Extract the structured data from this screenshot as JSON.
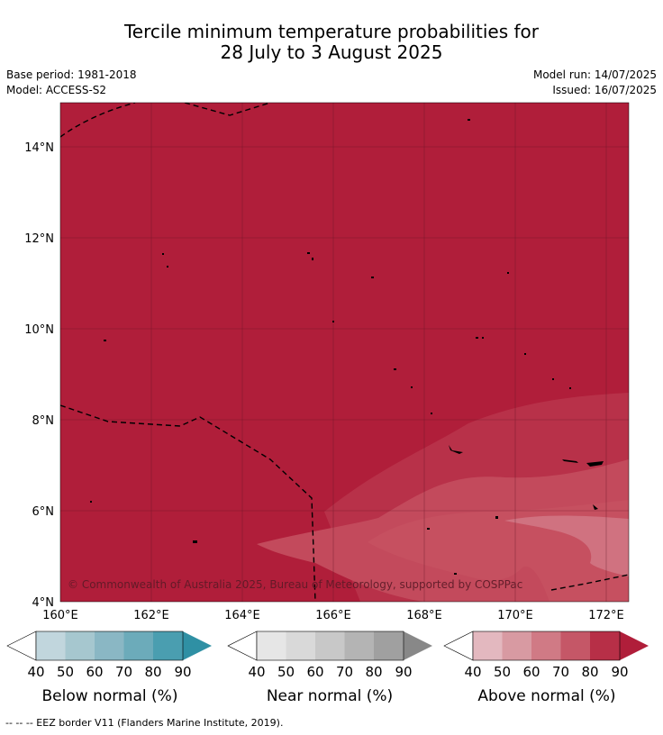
{
  "title": {
    "line1": "Tercile minimum temperature probabilities for",
    "line2": "28 July to 3 August 2025"
  },
  "meta": {
    "base_period": "Base period: 1981-2018",
    "model": "Model: ACCESS-S2",
    "model_run": "Model run: 14/07/2025",
    "issued": "Issued: 16/07/2025"
  },
  "map": {
    "lat_labels": [
      "14°N",
      "12°N",
      "10°N",
      "8°N",
      "6°N",
      "4°N"
    ],
    "lon_labels": [
      "160°E",
      "162°E",
      "164°E",
      "166°E",
      "168°E",
      "170°E",
      "172°E"
    ],
    "copyright": "© Commonwealth of Australia 2025, Bureau of Meteorology, supported by COSPPac",
    "lat_range": [
      4,
      15
    ],
    "lon_range": [
      160,
      172.5
    ]
  },
  "legends": [
    {
      "title": "Below normal (%)",
      "ticks": [
        "40",
        "50",
        "60",
        "70",
        "80",
        "90"
      ],
      "colors": [
        "#c1d6dd",
        "#a6c7cf",
        "#8ab7c4",
        "#6cabba",
        "#4a9eb0",
        "#2f90a4"
      ]
    },
    {
      "title": "Near normal (%)",
      "ticks": [
        "40",
        "50",
        "60",
        "70",
        "80",
        "90"
      ],
      "colors": [
        "#e6e6e6",
        "#d9d9d9",
        "#c8c8c8",
        "#b4b4b4",
        "#a0a0a0",
        "#888888"
      ]
    },
    {
      "title": "Above normal (%)",
      "ticks": [
        "40",
        "50",
        "60",
        "70",
        "80",
        "90"
      ],
      "colors": [
        "#e3b8bf",
        "#d89aa2",
        "#d07a85",
        "#c55767",
        "#b72f47",
        "#b01e3a"
      ]
    }
  ],
  "footer": "--  --  -- EEZ border V11 (Flanders Marine Institute, 2019)."
}
